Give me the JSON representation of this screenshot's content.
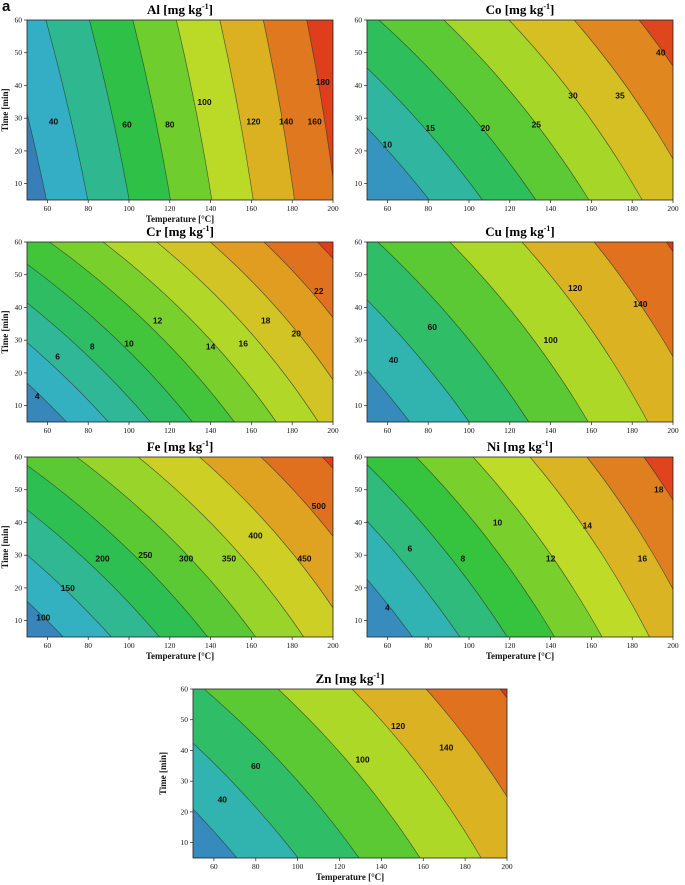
{
  "figure_label": "a",
  "colors": {
    "ramp": [
      "#3a6fb5",
      "#33b0c6",
      "#2fb98c",
      "#2ec140",
      "#79cf2c",
      "#c6dc26",
      "#e0a821",
      "#e06b1e",
      "#e0231c"
    ],
    "line": "#1e3a2a"
  },
  "chart_data": [
    {
      "id": "al",
      "type": "contour",
      "title": "Al [mg kg",
      "title_sup": "-1",
      "title_end": "]",
      "xlabel": "Temperature [°C]",
      "ylabel": "Time [min]",
      "xlim": [
        50,
        200
      ],
      "ylim": [
        5,
        60
      ],
      "xticks": [
        "60",
        "80",
        "100",
        "120",
        "140",
        "160",
        "180",
        "200"
      ],
      "yticks": [
        "10",
        "20",
        "30",
        "40",
        "50",
        "60"
      ],
      "levels": [
        40,
        60,
        80,
        100,
        120,
        140,
        160,
        180
      ],
      "vmin": 30,
      "vmax": 195,
      "curv": [
        4,
        2
      ],
      "tilt": 0.14,
      "labels": [
        {
          "text": "40",
          "x": 63,
          "y": 29
        },
        {
          "text": "60",
          "x": 99,
          "y": 28
        },
        {
          "text": "80",
          "x": 120,
          "y": 28
        },
        {
          "text": "100",
          "x": 137,
          "y": 35
        },
        {
          "text": "120",
          "x": 161,
          "y": 29
        },
        {
          "text": "140",
          "x": 177,
          "y": 29
        },
        {
          "text": "160",
          "x": 191,
          "y": 29
        },
        {
          "text": "180",
          "x": 195,
          "y": 41
        }
      ]
    },
    {
      "id": "co",
      "type": "contour",
      "title": "Co [mg kg",
      "title_sup": "-1",
      "title_end": "]",
      "xlabel": "",
      "ylabel": "",
      "xlim": [
        50,
        200
      ],
      "ylim": [
        5,
        60
      ],
      "xticks": [
        "60",
        "80",
        "100",
        "120",
        "140",
        "160",
        "180",
        "200"
      ],
      "yticks": [
        "10",
        "20",
        "30",
        "40",
        "50",
        "60"
      ],
      "levels": [
        10,
        15,
        20,
        25,
        30,
        35,
        40
      ],
      "vmin": 4,
      "vmax": 45,
      "curv": [
        5,
        4
      ],
      "tilt": 0.52,
      "labels": [
        {
          "text": "10",
          "x": 60,
          "y": 22
        },
        {
          "text": "15",
          "x": 81,
          "y": 27
        },
        {
          "text": "20",
          "x": 108,
          "y": 27
        },
        {
          "text": "25",
          "x": 133,
          "y": 28
        },
        {
          "text": "30",
          "x": 151,
          "y": 37
        },
        {
          "text": "35",
          "x": 174,
          "y": 37
        },
        {
          "text": "40",
          "x": 194,
          "y": 50
        }
      ]
    },
    {
      "id": "cr",
      "type": "contour",
      "title": "Cr [mg kg",
      "title_sup": "-1",
      "title_end": "]",
      "xlabel": "",
      "ylabel": "Time [min]",
      "xlim": [
        50,
        200
      ],
      "ylim": [
        5,
        60
      ],
      "xticks": [
        "60",
        "80",
        "100",
        "120",
        "140",
        "160",
        "180",
        "200"
      ],
      "yticks": [
        "10",
        "20",
        "30",
        "40",
        "50",
        "60"
      ],
      "levels": [
        4,
        6,
        8,
        10,
        12,
        14,
        16,
        18,
        20,
        22
      ],
      "vmin": 2,
      "vmax": 24,
      "curv": [
        8,
        5
      ],
      "tilt": 0.62,
      "labels": [
        {
          "text": "4",
          "x": 55,
          "y": 13
        },
        {
          "text": "6",
          "x": 65,
          "y": 25
        },
        {
          "text": "8",
          "x": 82,
          "y": 28
        },
        {
          "text": "10",
          "x": 100,
          "y": 29
        },
        {
          "text": "12",
          "x": 114,
          "y": 36
        },
        {
          "text": "14",
          "x": 140,
          "y": 28
        },
        {
          "text": "16",
          "x": 156,
          "y": 29
        },
        {
          "text": "18",
          "x": 167,
          "y": 36
        },
        {
          "text": "20",
          "x": 182,
          "y": 32
        },
        {
          "text": "22",
          "x": 193,
          "y": 45
        }
      ]
    },
    {
      "id": "cu",
      "type": "contour",
      "title": "Cu [mg kg",
      "title_sup": "-1",
      "title_end": "]",
      "xlabel": "",
      "ylabel": "",
      "xlim": [
        50,
        200
      ],
      "ylim": [
        5,
        60
      ],
      "xticks": [
        "60",
        "80",
        "100",
        "120",
        "140",
        "160",
        "180",
        "200"
      ],
      "yticks": [
        "10",
        "20",
        "30",
        "40",
        "50",
        "60"
      ],
      "levels": [
        40,
        60,
        80,
        100,
        120,
        140,
        160
      ],
      "vmin": 25,
      "vmax": 170,
      "curv": [
        6,
        4
      ],
      "tilt": 0.5,
      "labels": [
        {
          "text": "40",
          "x": 63,
          "y": 24
        },
        {
          "text": "60",
          "x": 82,
          "y": 34
        },
        {
          "text": "100",
          "x": 140,
          "y": 30
        },
        {
          "text": "120",
          "x": 152,
          "y": 46
        },
        {
          "text": "140",
          "x": 184,
          "y": 41
        }
      ]
    },
    {
      "id": "fe",
      "type": "contour",
      "title": "Fe [mg kg",
      "title_sup": "-1",
      "title_end": "]",
      "xlabel": "Temperature [°C]",
      "ylabel": "Time [min]",
      "xlim": [
        50,
        200
      ],
      "ylim": [
        5,
        60
      ],
      "xticks": [
        "60",
        "80",
        "100",
        "120",
        "140",
        "160",
        "180",
        "200"
      ],
      "yticks": [
        "10",
        "20",
        "30",
        "40",
        "50",
        "60"
      ],
      "levels": [
        100,
        150,
        200,
        250,
        300,
        350,
        400,
        450,
        500
      ],
      "vmin": 60,
      "vmax": 540,
      "curv": [
        7,
        5
      ],
      "tilt": 0.62,
      "labels": [
        {
          "text": "100",
          "x": 58,
          "y": 11
        },
        {
          "text": "150",
          "x": 70,
          "y": 20
        },
        {
          "text": "200",
          "x": 87,
          "y": 29
        },
        {
          "text": "250",
          "x": 108,
          "y": 30
        },
        {
          "text": "300",
          "x": 128,
          "y": 29
        },
        {
          "text": "350",
          "x": 149,
          "y": 29
        },
        {
          "text": "400",
          "x": 162,
          "y": 36
        },
        {
          "text": "450",
          "x": 186,
          "y": 29
        },
        {
          "text": "500",
          "x": 193,
          "y": 45
        }
      ]
    },
    {
      "id": "ni",
      "type": "contour",
      "title": "Ni [mg kg",
      "title_sup": "-1",
      "title_end": "]",
      "xlabel": "Temperature [°C]",
      "ylabel": "",
      "xlim": [
        50,
        200
      ],
      "ylim": [
        5,
        60
      ],
      "xticks": [
        "60",
        "80",
        "100",
        "120",
        "140",
        "160",
        "180",
        "200"
      ],
      "yticks": [
        "10",
        "20",
        "30",
        "40",
        "50",
        "60"
      ],
      "levels": [
        4,
        6,
        8,
        10,
        12,
        14,
        16,
        18
      ],
      "vmin": 2,
      "vmax": 20,
      "curv": [
        6,
        4
      ],
      "tilt": 0.48,
      "labels": [
        {
          "text": "4",
          "x": 60,
          "y": 14
        },
        {
          "text": "6",
          "x": 71,
          "y": 32
        },
        {
          "text": "8",
          "x": 97,
          "y": 29
        },
        {
          "text": "10",
          "x": 114,
          "y": 40
        },
        {
          "text": "12",
          "x": 140,
          "y": 29
        },
        {
          "text": "14",
          "x": 158,
          "y": 39
        },
        {
          "text": "16",
          "x": 185,
          "y": 29
        },
        {
          "text": "18",
          "x": 193,
          "y": 50
        }
      ]
    },
    {
      "id": "zn",
      "type": "contour",
      "title": "Zn [mg kg",
      "title_sup": "-1",
      "title_end": "]",
      "xlabel": "Temperature [°C]",
      "ylabel": "Time [min]",
      "xlim": [
        50,
        200
      ],
      "ylim": [
        5,
        60
      ],
      "xticks": [
        "60",
        "80",
        "100",
        "120",
        "140",
        "160",
        "180",
        "200"
      ],
      "yticks": [
        "10",
        "20",
        "30",
        "40",
        "50",
        "60"
      ],
      "levels": [
        40,
        60,
        80,
        100,
        120,
        140,
        160
      ],
      "vmin": 25,
      "vmax": 170,
      "curv": [
        6,
        4
      ],
      "tilt": 0.5,
      "labels": [
        {
          "text": "40",
          "x": 64,
          "y": 24
        },
        {
          "text": "60",
          "x": 80,
          "y": 35
        },
        {
          "text": "100",
          "x": 131,
          "y": 37
        },
        {
          "text": "120",
          "x": 148,
          "y": 48
        },
        {
          "text": "140",
          "x": 171,
          "y": 41
        }
      ]
    }
  ]
}
